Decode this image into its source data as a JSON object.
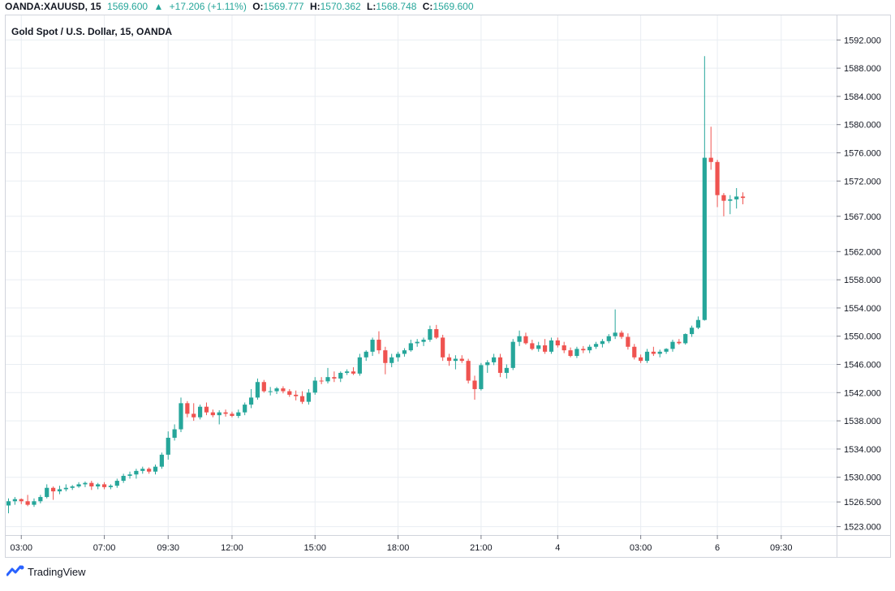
{
  "header": {
    "symbol": "OANDA:XAUUSD, 15",
    "last": "1569.600",
    "change": "+17.206 (+1.11%)",
    "o_label": "O:",
    "o_val": "1569.777",
    "h_label": "H:",
    "h_val": "1570.362",
    "l_label": "L:",
    "l_val": "1568.748",
    "c_label": "C:",
    "c_val": "1569.600"
  },
  "footer": {
    "brand": "TradingView"
  },
  "colors": {
    "up": "#26a69a",
    "down": "#ef5350",
    "grid": "#e9edf2",
    "axis": "#787b86"
  },
  "chart_data": {
    "type": "candlestick",
    "title": "Gold Spot / U.S. Dollar, 15, OANDA",
    "price_axis": {
      "ticks": [
        1592,
        1588,
        1584,
        1580,
        1576,
        1572,
        1567,
        1562,
        1558,
        1554,
        1550,
        1546,
        1542,
        1538,
        1534,
        1530,
        1526.5,
        1523
      ],
      "tick_labels": [
        "1592.000",
        "1588.000",
        "1584.000",
        "1580.000",
        "1576.000",
        "1572.000",
        "1567.000",
        "1562.000",
        "1558.000",
        "1554.000",
        "1550.000",
        "1546.000",
        "1542.000",
        "1538.000",
        "1534.000",
        "1530.000",
        "1526.500",
        "1523.000"
      ],
      "ylim": [
        1522,
        1594
      ],
      "position": "right"
    },
    "time_axis": {
      "labels": [
        {
          "text": "03:00",
          "bar": 2
        },
        {
          "text": "07:00",
          "bar": 15
        },
        {
          "text": "09:30",
          "bar": 25
        },
        {
          "text": "12:00",
          "bar": 35
        },
        {
          "text": "15:00",
          "bar": 48
        },
        {
          "text": "18:00",
          "bar": 61
        },
        {
          "text": "21:00",
          "bar": 74
        },
        {
          "text": "4",
          "bar": 86
        },
        {
          "text": "03:00",
          "bar": 99
        },
        {
          "text": "6",
          "bar": 111
        },
        {
          "text": "09:30",
          "bar": 121
        }
      ]
    },
    "grid": true,
    "candles": [
      [
        1526.0,
        1527.0,
        1524.9,
        1526.6
      ],
      [
        1526.6,
        1527.2,
        1526.1,
        1526.9
      ],
      [
        1526.9,
        1527.0,
        1526.2,
        1526.6
      ],
      [
        1526.6,
        1527.5,
        1525.9,
        1526.1
      ],
      [
        1526.1,
        1527.0,
        1525.8,
        1526.6
      ],
      [
        1526.6,
        1527.5,
        1526.3,
        1527.2
      ],
      [
        1527.2,
        1529.0,
        1527.0,
        1528.5
      ],
      [
        1528.5,
        1528.7,
        1526.8,
        1528.0
      ],
      [
        1528.0,
        1528.8,
        1527.6,
        1528.3
      ],
      [
        1528.3,
        1529.0,
        1528.0,
        1528.5
      ],
      [
        1528.5,
        1528.9,
        1528.2,
        1528.7
      ],
      [
        1528.7,
        1529.3,
        1528.5,
        1529.0
      ],
      [
        1529.0,
        1529.4,
        1528.6,
        1529.2
      ],
      [
        1529.2,
        1529.5,
        1528.2,
        1528.7
      ],
      [
        1528.7,
        1529.2,
        1528.3,
        1529.0
      ],
      [
        1529.0,
        1529.3,
        1528.3,
        1528.6
      ],
      [
        1528.6,
        1529.0,
        1528.3,
        1528.8
      ],
      [
        1528.8,
        1529.8,
        1528.5,
        1529.5
      ],
      [
        1529.5,
        1530.5,
        1529.2,
        1530.2
      ],
      [
        1530.2,
        1530.8,
        1529.8,
        1530.4
      ],
      [
        1530.4,
        1531.2,
        1529.8,
        1530.9
      ],
      [
        1530.9,
        1531.5,
        1530.5,
        1531.2
      ],
      [
        1531.2,
        1531.4,
        1530.5,
        1530.8
      ],
      [
        1530.8,
        1531.8,
        1530.4,
        1531.5
      ],
      [
        1531.5,
        1533.5,
        1531.2,
        1533.2
      ],
      [
        1533.2,
        1536.5,
        1532.5,
        1535.6
      ],
      [
        1535.6,
        1537.5,
        1535.2,
        1536.8
      ],
      [
        1536.8,
        1541.3,
        1536.4,
        1540.5
      ],
      [
        1540.5,
        1540.8,
        1538.5,
        1539.0
      ],
      [
        1539.0,
        1540.5,
        1538.0,
        1538.5
      ],
      [
        1538.5,
        1540.3,
        1538.2,
        1540.0
      ],
      [
        1540.0,
        1540.6,
        1538.8,
        1539.2
      ],
      [
        1539.2,
        1539.6,
        1538.5,
        1538.8
      ],
      [
        1538.8,
        1539.5,
        1537.5,
        1539.2
      ],
      [
        1539.2,
        1539.6,
        1538.6,
        1539.0
      ],
      [
        1539.0,
        1539.3,
        1538.5,
        1538.7
      ],
      [
        1538.7,
        1539.6,
        1538.4,
        1539.2
      ],
      [
        1539.2,
        1540.6,
        1538.8,
        1540.3
      ],
      [
        1540.3,
        1542.5,
        1539.8,
        1541.3
      ],
      [
        1541.3,
        1544.0,
        1541.0,
        1543.5
      ],
      [
        1543.5,
        1543.8,
        1542.0,
        1542.2
      ],
      [
        1542.2,
        1542.8,
        1541.6,
        1542.2
      ],
      [
        1542.2,
        1542.8,
        1541.8,
        1542.6
      ],
      [
        1542.6,
        1542.9,
        1541.9,
        1542.2
      ],
      [
        1542.2,
        1542.5,
        1541.4,
        1541.7
      ],
      [
        1541.7,
        1542.3,
        1540.9,
        1541.5
      ],
      [
        1541.5,
        1542.2,
        1540.4,
        1540.7
      ],
      [
        1540.7,
        1542.5,
        1540.3,
        1542.0
      ],
      [
        1542.0,
        1544.2,
        1541.7,
        1543.7
      ],
      [
        1543.7,
        1544.2,
        1543.2,
        1543.6
      ],
      [
        1543.6,
        1545.5,
        1543.3,
        1544.2
      ],
      [
        1544.2,
        1545.0,
        1543.5,
        1544.0
      ],
      [
        1544.0,
        1545.0,
        1543.5,
        1544.8
      ],
      [
        1544.8,
        1545.3,
        1544.5,
        1545.0
      ],
      [
        1545.0,
        1545.6,
        1544.5,
        1544.7
      ],
      [
        1544.7,
        1547.5,
        1544.4,
        1547.0
      ],
      [
        1547.0,
        1548.0,
        1546.5,
        1547.8
      ],
      [
        1547.8,
        1549.8,
        1547.2,
        1549.5
      ],
      [
        1549.5,
        1550.7,
        1547.5,
        1548.0
      ],
      [
        1548.0,
        1548.5,
        1544.6,
        1546.2
      ],
      [
        1546.2,
        1547.5,
        1545.6,
        1547.0
      ],
      [
        1547.0,
        1547.8,
        1546.4,
        1547.5
      ],
      [
        1547.5,
        1548.3,
        1547.1,
        1548.0
      ],
      [
        1548.0,
        1549.5,
        1547.8,
        1549.0
      ],
      [
        1549.0,
        1549.6,
        1548.5,
        1549.2
      ],
      [
        1549.2,
        1549.8,
        1548.6,
        1549.5
      ],
      [
        1549.5,
        1551.5,
        1549.2,
        1551.0
      ],
      [
        1551.0,
        1551.6,
        1549.6,
        1549.8
      ],
      [
        1549.8,
        1550.2,
        1546.5,
        1547.0
      ],
      [
        1547.0,
        1547.5,
        1545.8,
        1546.5
      ],
      [
        1546.5,
        1547.3,
        1545.3,
        1546.8
      ],
      [
        1546.8,
        1547.3,
        1546.2,
        1546.5
      ],
      [
        1546.5,
        1546.8,
        1543.3,
        1543.7
      ],
      [
        1543.7,
        1544.4,
        1541.0,
        1542.5
      ],
      [
        1542.5,
        1546.2,
        1542.3,
        1545.9
      ],
      [
        1545.9,
        1546.6,
        1544.8,
        1546.3
      ],
      [
        1546.3,
        1547.5,
        1545.9,
        1547.0
      ],
      [
        1547.0,
        1547.5,
        1544.2,
        1544.8
      ],
      [
        1544.8,
        1546.0,
        1544.0,
        1545.5
      ],
      [
        1545.5,
        1549.6,
        1545.2,
        1549.2
      ],
      [
        1549.2,
        1550.8,
        1548.6,
        1550.0
      ],
      [
        1550.0,
        1550.5,
        1548.8,
        1549.0
      ],
      [
        1549.0,
        1549.5,
        1548.0,
        1548.2
      ],
      [
        1548.2,
        1549.2,
        1547.8,
        1548.7
      ],
      [
        1548.7,
        1549.6,
        1547.5,
        1547.8
      ],
      [
        1547.8,
        1549.8,
        1547.5,
        1549.4
      ],
      [
        1549.4,
        1549.8,
        1548.4,
        1548.7
      ],
      [
        1548.7,
        1549.2,
        1547.6,
        1548.0
      ],
      [
        1548.0,
        1548.4,
        1547.0,
        1547.2
      ],
      [
        1547.2,
        1548.5,
        1546.9,
        1548.2
      ],
      [
        1548.2,
        1548.6,
        1547.6,
        1548.0
      ],
      [
        1548.0,
        1548.8,
        1547.6,
        1548.5
      ],
      [
        1548.5,
        1549.2,
        1548.2,
        1548.9
      ],
      [
        1548.9,
        1549.6,
        1548.4,
        1549.3
      ],
      [
        1549.3,
        1550.3,
        1549.0,
        1550.0
      ],
      [
        1550.0,
        1553.8,
        1549.6,
        1550.5
      ],
      [
        1550.5,
        1550.8,
        1549.6,
        1549.9
      ],
      [
        1549.9,
        1550.4,
        1548.1,
        1548.5
      ],
      [
        1548.5,
        1548.9,
        1546.7,
        1547.0
      ],
      [
        1547.0,
        1547.4,
        1546.2,
        1546.5
      ],
      [
        1546.5,
        1548.2,
        1546.2,
        1547.8
      ],
      [
        1547.8,
        1548.5,
        1547.2,
        1547.5
      ],
      [
        1547.5,
        1548.1,
        1547.0,
        1547.8
      ],
      [
        1547.8,
        1548.3,
        1547.5,
        1548.2
      ],
      [
        1548.2,
        1549.5,
        1547.8,
        1549.2
      ],
      [
        1549.2,
        1549.6,
        1548.8,
        1549.0
      ],
      [
        1549.0,
        1550.4,
        1548.8,
        1550.3
      ],
      [
        1550.3,
        1551.5,
        1549.9,
        1551.2
      ],
      [
        1551.2,
        1552.8,
        1551.0,
        1552.3
      ],
      [
        1552.3,
        1589.7,
        1552.2,
        1575.3
      ],
      [
        1575.3,
        1579.7,
        1573.6,
        1574.7
      ],
      [
        1574.7,
        1575.0,
        1568.3,
        1570.0
      ],
      [
        1570.0,
        1570.3,
        1567.0,
        1569.2
      ],
      [
        1569.2,
        1570.0,
        1567.3,
        1569.4
      ],
      [
        1569.4,
        1571.0,
        1568.1,
        1569.8
      ],
      [
        1569.8,
        1570.4,
        1568.7,
        1569.6
      ]
    ]
  }
}
